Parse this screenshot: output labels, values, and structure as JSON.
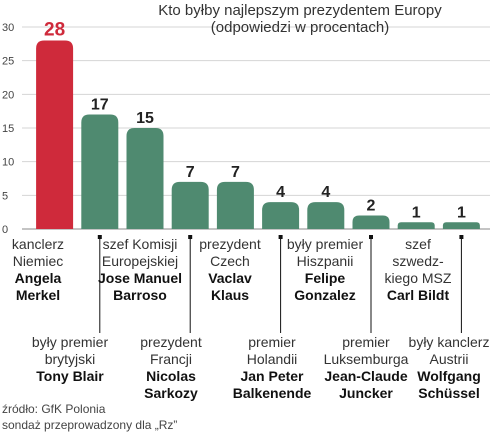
{
  "chart_data": {
    "type": "bar",
    "title": "Kto byłby najlepszym prezydentem Europy",
    "subtitle": "(odpowiedzi w procentach)",
    "ylim": [
      0,
      30
    ],
    "yticks": [
      "0",
      "5",
      "10",
      "15",
      "20",
      "25",
      "30"
    ],
    "grid": true,
    "highlight_color": "#cf2a3b",
    "bar_color": "#4f8a70",
    "values": [
      28,
      17,
      15,
      7,
      7,
      4,
      4,
      2,
      1,
      1
    ],
    "value_labels": [
      "28",
      "17",
      "15",
      "7",
      "7",
      "4",
      "4",
      "2",
      "1",
      "1"
    ],
    "categories": [
      {
        "role": "kanclerz Niemiec",
        "name": "Angela Merkel"
      },
      {
        "role": "były premier brytyjski",
        "name": "Tony Blair"
      },
      {
        "role": "szef Komisji Europejskiej",
        "name": "Jose Manuel Barroso"
      },
      {
        "role": "prezydent Francji",
        "name": "Nicolas Sarkozy"
      },
      {
        "role": "prezydent Czech",
        "name": "Vaclav Klaus"
      },
      {
        "role": "premier Holandii",
        "name": "Jan Peter Balkenende"
      },
      {
        "role": "były premier Hiszpanii",
        "name": "Felipe Gonzalez"
      },
      {
        "role": "premier Luksemburga",
        "name": "Jean-Claude Juncker"
      },
      {
        "role": "szef szwedz- kiego MSZ",
        "name": "Carl Bildt"
      },
      {
        "role": "były kanclerz Austrii",
        "name": "Wolfgang Schüssel"
      }
    ]
  },
  "source": {
    "line1": "źródło: GfK Polonia",
    "line2": "sondaż przeprowadzony dla „Rz”"
  }
}
